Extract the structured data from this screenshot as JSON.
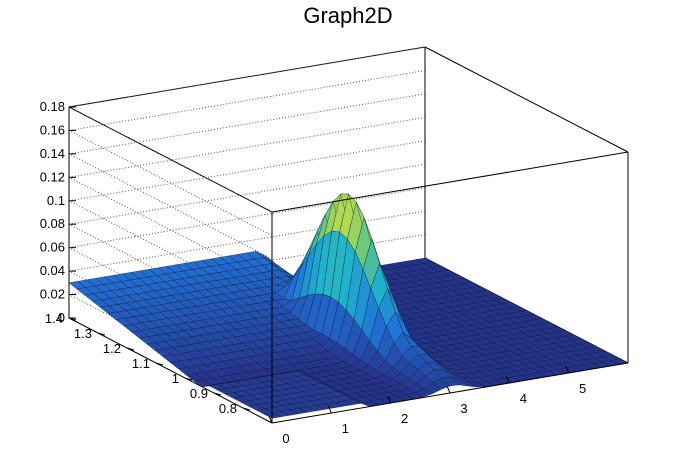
{
  "chart_data": {
    "type": "surface",
    "title": "Graph2D",
    "xlabel": "",
    "ylabel": "",
    "zlabel": "",
    "x_range": [
      0,
      6
    ],
    "y_range": [
      0.7,
      1.4
    ],
    "z_range": [
      0,
      0.18
    ],
    "x_ticks": [
      "0",
      "1",
      "2",
      "3",
      "4",
      "5"
    ],
    "y_ticks": [
      "0.8",
      "0.9",
      "1",
      "1.1",
      "1.2",
      "1.3",
      "1.4"
    ],
    "z_ticks": [
      "0",
      "0.02",
      "0.04",
      "0.06",
      "0.08",
      "0.1",
      "0.12",
      "0.14",
      "0.16",
      "0.18"
    ],
    "grid": true,
    "colormap": "viridis-like (blue to yellow)",
    "features": [
      {
        "description": "peak",
        "x": 3.0,
        "y": 1.05,
        "z": 0.125
      },
      {
        "description": "plateau",
        "x_range": [
          0,
          3.5
        ],
        "y_range": [
          1.0,
          1.4
        ],
        "z": 0.03
      },
      {
        "description": "flat zero region",
        "x_range": [
          3.8,
          6
        ],
        "z": 0.0
      }
    ]
  }
}
